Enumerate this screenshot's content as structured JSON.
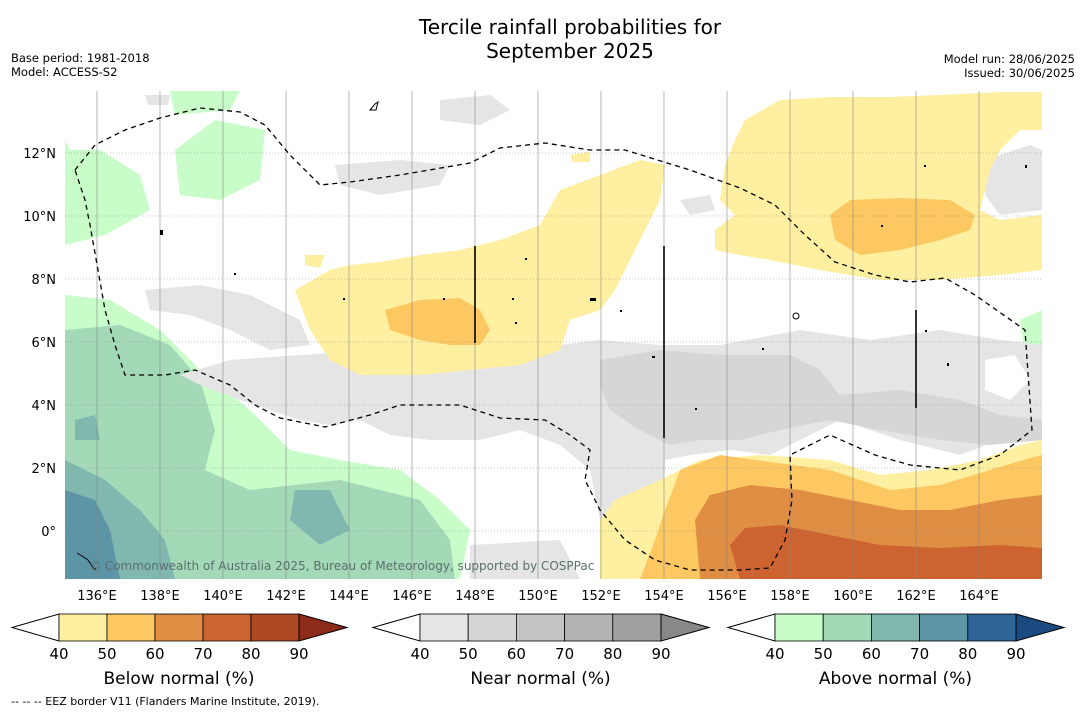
{
  "title_line1": "Tercile rainfall probabilities for",
  "title_line2": "September 2025",
  "meta_left": {
    "base_period": "Base period: 1981-2018",
    "model": "Model: ACCESS-S2"
  },
  "meta_right": {
    "model_run": "Model run: 28/06/2025",
    "issued": "Issued: 30/06/2025"
  },
  "lon_labels": [
    "136°E",
    "138°E",
    "140°E",
    "142°E",
    "144°E",
    "146°E",
    "148°E",
    "150°E",
    "152°E",
    "154°E",
    "156°E",
    "158°E",
    "160°E",
    "162°E",
    "164°E"
  ],
  "lat_labels": [
    "12°N",
    "10°N",
    "8°N",
    "6°N",
    "4°N",
    "2°N",
    "0°"
  ],
  "copyright": "© Commonwealth of Australia 2025, Bureau of Meteorology, supported by COSPPac",
  "colorbars": [
    {
      "label": "Below normal (%)",
      "ticks": [
        "40",
        "50",
        "60",
        "70",
        "80",
        "90"
      ],
      "colors": [
        "#fef0a0",
        "#fdc862",
        "#e08e44",
        "#cc6330",
        "#ad4a25",
        "#8c2b1a"
      ]
    },
    {
      "label": "Near normal (%)",
      "ticks": [
        "40",
        "50",
        "60",
        "70",
        "80",
        "90"
      ],
      "colors": [
        "#e5e5e5",
        "#d6d6d6",
        "#c4c4c4",
        "#b3b3b3",
        "#a0a0a0",
        "#888888"
      ]
    },
    {
      "label": "Above normal (%)",
      "ticks": [
        "40",
        "50",
        "60",
        "70",
        "80",
        "90"
      ],
      "colors": [
        "#c8fcc8",
        "#a4d9b8",
        "#80b8b0",
        "#5c95a5",
        "#2f6596",
        "#1a4a80"
      ]
    }
  ],
  "footnote": "--  --  -- EEZ border V11 (Flanders Marine Institute, 2019)."
}
